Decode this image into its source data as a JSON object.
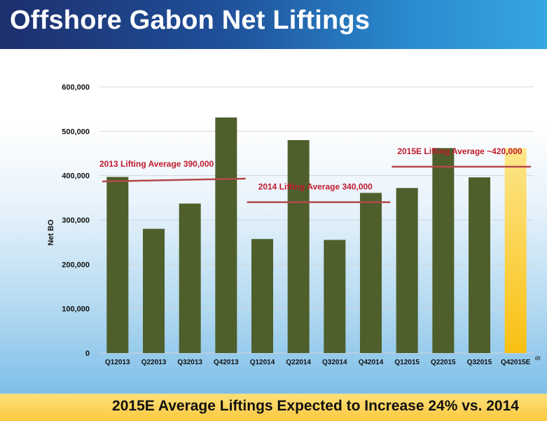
{
  "header": {
    "title": "Offshore Gabon Net Liftings"
  },
  "footer": {
    "text": "2015E Average Liftings Expected to Increase 24% vs. 2014"
  },
  "colors": {
    "bar": "#4e5f2b",
    "bar_estimate_top": "#fde68a",
    "bar_estimate_bottom": "#f9c012",
    "avg_line": "#b5484a",
    "annotation": "#c0192c",
    "grid": "#d0d6dc"
  },
  "chart_data": {
    "type": "bar",
    "title": "Offshore Gabon Net Liftings",
    "xlabel": "",
    "ylabel": "Net BO",
    "ylim": [
      0,
      600000
    ],
    "yticks": [
      0,
      100000,
      200000,
      300000,
      400000,
      500000,
      600000
    ],
    "ytick_labels": [
      "0",
      "100,000",
      "200,000",
      "300,000",
      "400,000",
      "500,000",
      "600,000"
    ],
    "grid": true,
    "categories": [
      "Q12013",
      "Q22013",
      "Q32013",
      "Q42013",
      "Q12014",
      "Q22014",
      "Q32014",
      "Q42014",
      "Q12015",
      "Q22015",
      "Q32015",
      "Q42015E"
    ],
    "values": [
      397000,
      280000,
      337000,
      531000,
      257000,
      480000,
      255000,
      361000,
      372000,
      462000,
      396000,
      462000
    ],
    "estimate_index": 11,
    "estimate_note": "(2)",
    "averages": [
      {
        "label": "2013 Lifting Average 390,000",
        "value": 390000,
        "from": 0,
        "to": 3
      },
      {
        "label": "2014 Lifting Average 340,000",
        "value": 340000,
        "from": 4,
        "to": 7
      },
      {
        "label": "2015E Lifting Average ~420,000",
        "value": 420000,
        "from": 8,
        "to": 11
      }
    ]
  }
}
